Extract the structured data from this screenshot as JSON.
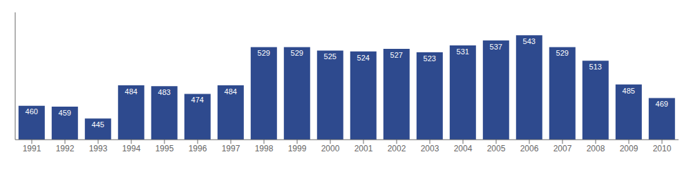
{
  "chart_data": {
    "type": "bar",
    "categories": [
      "1991",
      "1992",
      "1993",
      "1994",
      "1995",
      "1996",
      "1997",
      "1998",
      "1999",
      "2000",
      "2001",
      "2002",
      "2003",
      "2004",
      "2005",
      "2006",
      "2007",
      "2008",
      "2009",
      "2010"
    ],
    "values": [
      460,
      459,
      445,
      484,
      483,
      474,
      484,
      529,
      529,
      525,
      524,
      527,
      523,
      531,
      537,
      543,
      529,
      513,
      485,
      469
    ],
    "color": "#2E4A8E",
    "ylim": [
      420,
      570
    ],
    "data_labels": true,
    "tick_labels": "x"
  }
}
